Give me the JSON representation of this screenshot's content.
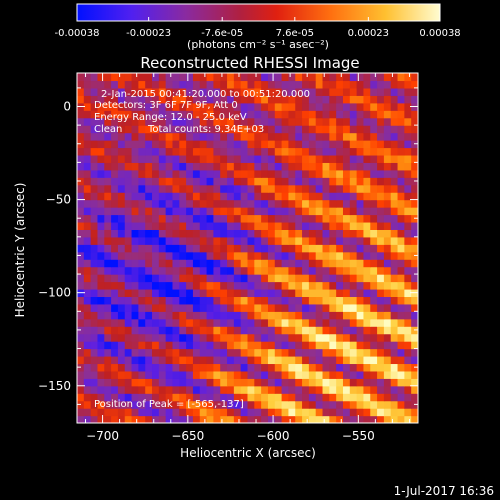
{
  "colorbar": {
    "tick_labels": [
      "-0.00038",
      "-0.00023",
      "-7.6e-05",
      "7.6e-05",
      "0.00023",
      "0.00038"
    ],
    "tick_values": [
      -0.00038,
      -0.00023,
      -7.6e-05,
      7.6e-05,
      0.00023,
      0.00038
    ],
    "range": [
      -0.00038,
      0.00038
    ],
    "unit_label": "(photons cm⁻² s⁻¹ asec⁻²)"
  },
  "chart_data": {
    "type": "heatmap",
    "title": "Reconstructed RHESSI Image",
    "xlabel": "Heliocentric X (arcsec)",
    "ylabel": "Heliocentric Y (arcsec)",
    "xlim": [
      -715,
      -515
    ],
    "ylim": [
      -170,
      18
    ],
    "x_ticks": [
      -700,
      -650,
      -600,
      -550
    ],
    "y_ticks": [
      -150,
      -100,
      -50,
      0
    ],
    "x_tick_labels": [
      "−700",
      "−650",
      "−600",
      "−550"
    ],
    "y_tick_labels": [
      "−150",
      "−100",
      "−50",
      "0"
    ],
    "grid": false,
    "pixel_size_arcsec": 4,
    "peak_x": -565,
    "peak_y": -137,
    "value_range": [
      -0.00038,
      0.00038
    ],
    "colormap": [
      "#0010ff",
      "#6020e0",
      "#903090",
      "#c02020",
      "#ff4000",
      "#ff9010",
      "#ffd040",
      "#fffcc0"
    ]
  },
  "annotations": {
    "time_range": "2-Jan-2015 00:41:20.000 to 00:51:20.000",
    "detectors": "Detectors: 3F 6F 7F 9F, Att 0",
    "energy_range": "Energy Range: 12.0 - 25.0 keV",
    "algorithm": "Clean",
    "total_counts": "Total counts: 9.34E+03",
    "peak_position": "Position of Peak = [-565,-137]"
  },
  "footer": {
    "date_stamp": "1-Jul-2017 16:36"
  }
}
